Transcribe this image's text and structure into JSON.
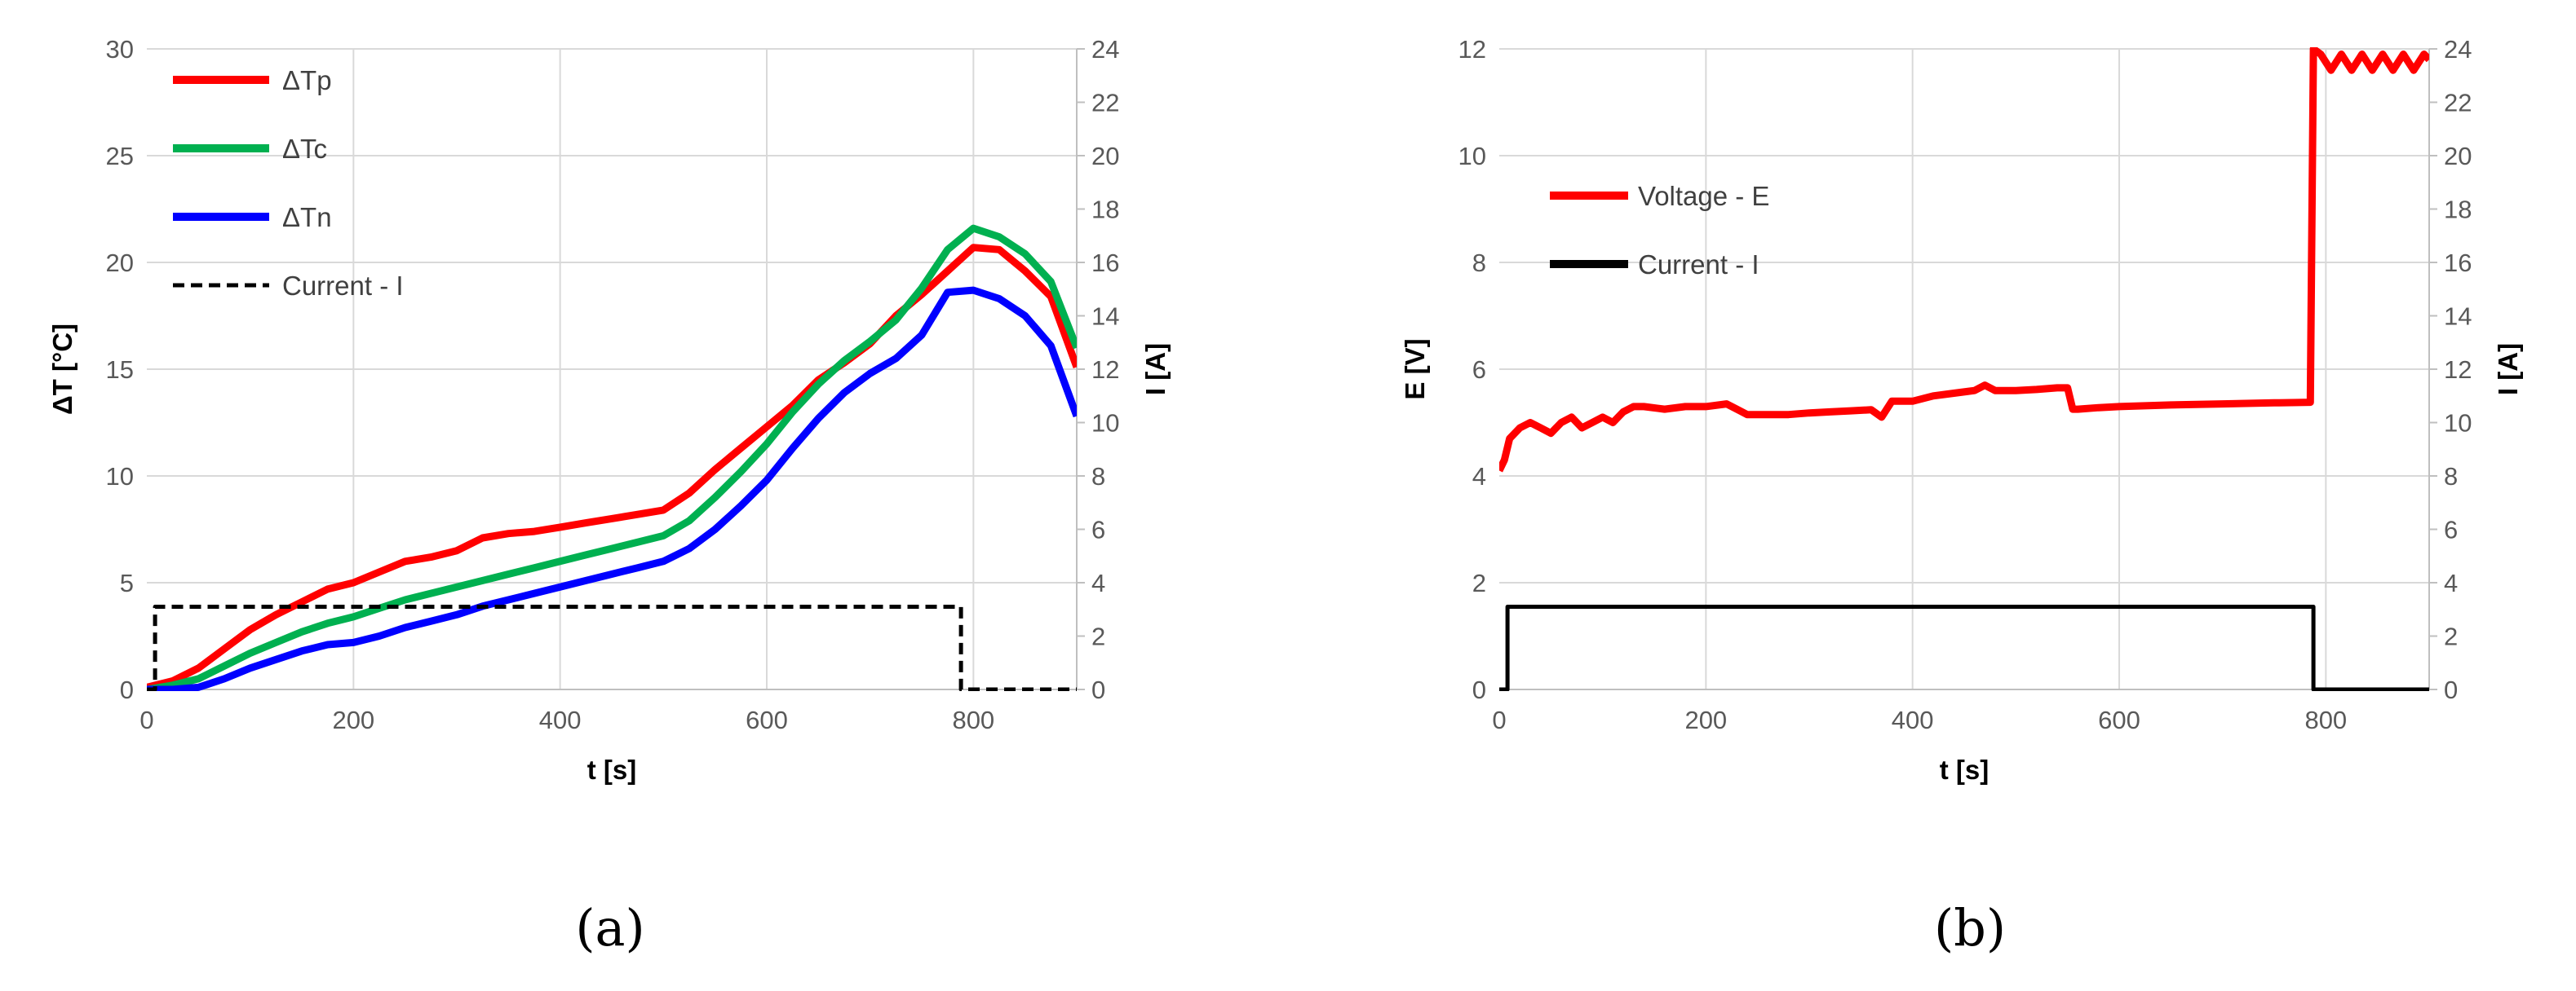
{
  "chart_data": [
    {
      "type": "line",
      "panel_label": "(a)",
      "xlabel": "t [s]",
      "ylabel": "ΔT [°C]",
      "y2label": "I [A]",
      "xlim": [
        0,
        900
      ],
      "ylim": [
        0,
        30
      ],
      "y2lim": [
        0,
        24
      ],
      "x_ticks": [
        0,
        200,
        400,
        600,
        800
      ],
      "y_ticks": [
        0,
        5,
        10,
        15,
        20,
        25,
        30
      ],
      "y2_ticks": [
        0,
        2,
        4,
        6,
        8,
        10,
        12,
        14,
        16,
        18,
        20,
        22,
        24
      ],
      "grid": true,
      "legend_position": "top-left",
      "series": [
        {
          "name": "ΔTp",
          "axis": "left",
          "color": "#ff0000",
          "style": "solid",
          "x": [
            0,
            25,
            50,
            75,
            100,
            125,
            150,
            175,
            200,
            225,
            250,
            275,
            300,
            325,
            350,
            375,
            400,
            425,
            450,
            475,
            500,
            525,
            550,
            575,
            600,
            625,
            650,
            675,
            700,
            725,
            750,
            775,
            800,
            825,
            850,
            875,
            900
          ],
          "y": [
            0.1,
            0.4,
            1.0,
            1.9,
            2.8,
            3.5,
            4.1,
            4.7,
            5.0,
            5.5,
            6.0,
            6.2,
            6.5,
            7.1,
            7.3,
            7.4,
            7.6,
            7.8,
            8.0,
            8.2,
            8.4,
            9.2,
            10.3,
            11.3,
            12.3,
            13.3,
            14.5,
            15.3,
            16.2,
            17.5,
            18.5,
            19.6,
            20.7,
            20.6,
            19.6,
            18.4,
            15.1
          ]
        },
        {
          "name": "ΔTc",
          "axis": "left",
          "color": "#00b050",
          "style": "solid",
          "x": [
            0,
            25,
            50,
            75,
            100,
            125,
            150,
            175,
            200,
            225,
            250,
            275,
            300,
            325,
            350,
            375,
            400,
            425,
            450,
            475,
            500,
            525,
            550,
            575,
            600,
            625,
            650,
            675,
            700,
            725,
            750,
            775,
            800,
            825,
            850,
            875,
            900
          ],
          "y": [
            0.0,
            0.2,
            0.5,
            1.1,
            1.7,
            2.2,
            2.7,
            3.1,
            3.4,
            3.8,
            4.2,
            4.5,
            4.8,
            5.1,
            5.4,
            5.7,
            6.0,
            6.3,
            6.6,
            6.9,
            7.2,
            7.9,
            9.0,
            10.2,
            11.5,
            13.0,
            14.3,
            15.4,
            16.3,
            17.3,
            18.8,
            20.6,
            21.6,
            21.2,
            20.4,
            19.1,
            16.0
          ]
        },
        {
          "name": "ΔTn",
          "axis": "left",
          "color": "#0000ff",
          "style": "solid",
          "x": [
            0,
            25,
            50,
            75,
            100,
            125,
            150,
            175,
            200,
            225,
            250,
            275,
            300,
            325,
            350,
            375,
            400,
            425,
            450,
            475,
            500,
            525,
            550,
            575,
            600,
            625,
            650,
            675,
            700,
            725,
            750,
            775,
            800,
            825,
            850,
            875,
            900
          ],
          "y": [
            0.0,
            0.0,
            0.1,
            0.5,
            1.0,
            1.4,
            1.8,
            2.1,
            2.2,
            2.5,
            2.9,
            3.2,
            3.5,
            3.9,
            4.2,
            4.5,
            4.8,
            5.1,
            5.4,
            5.7,
            6.0,
            6.6,
            7.5,
            8.6,
            9.8,
            11.3,
            12.7,
            13.9,
            14.8,
            15.5,
            16.6,
            18.6,
            18.7,
            18.3,
            17.5,
            16.1,
            12.8
          ]
        },
        {
          "name": "Current - I",
          "axis": "right",
          "color": "#000000",
          "style": "dashed",
          "x": [
            0,
            8,
            8,
            788,
            788,
            900
          ],
          "y": [
            0,
            0,
            3.1,
            3.1,
            0,
            0
          ]
        }
      ]
    },
    {
      "type": "line",
      "panel_label": "(b)",
      "xlabel": "t [s]",
      "ylabel": "E [V]",
      "y2label": "I [A]",
      "xlim": [
        0,
        900
      ],
      "ylim": [
        0,
        12
      ],
      "y2lim": [
        0,
        24
      ],
      "x_ticks": [
        0,
        200,
        400,
        600,
        800
      ],
      "y_ticks": [
        0,
        2,
        4,
        6,
        8,
        10,
        12
      ],
      "y2_ticks": [
        0,
        2,
        4,
        6,
        8,
        10,
        12,
        14,
        16,
        18,
        20,
        22,
        24
      ],
      "grid": true,
      "legend_position": "upper-left",
      "series": [
        {
          "name": "Voltage - E",
          "axis": "left",
          "color": "#ff0000",
          "style": "solid",
          "x": [
            0,
            5,
            10,
            20,
            30,
            40,
            50,
            60,
            70,
            80,
            90,
            100,
            110,
            120,
            130,
            140,
            160,
            180,
            200,
            220,
            230,
            240,
            260,
            280,
            300,
            320,
            340,
            360,
            370,
            380,
            400,
            420,
            440,
            460,
            470,
            480,
            500,
            520,
            540,
            550,
            555,
            560,
            580,
            600,
            650,
            700,
            750,
            785,
            788,
            795,
            805,
            815,
            825,
            835,
            845,
            855,
            865,
            875,
            885,
            895,
            900
          ],
          "y": [
            4.1,
            4.3,
            4.7,
            4.9,
            5.0,
            4.9,
            4.8,
            5.0,
            5.1,
            4.9,
            5.0,
            5.1,
            5.0,
            5.2,
            5.3,
            5.3,
            5.25,
            5.3,
            5.3,
            5.35,
            5.25,
            5.15,
            5.15,
            5.15,
            5.18,
            5.2,
            5.22,
            5.24,
            5.1,
            5.4,
            5.4,
            5.5,
            5.55,
            5.6,
            5.7,
            5.6,
            5.6,
            5.62,
            5.65,
            5.65,
            5.25,
            5.25,
            5.28,
            5.3,
            5.33,
            5.35,
            5.37,
            5.38,
            12.0,
            11.9,
            11.6,
            11.9,
            11.6,
            11.9,
            11.6,
            11.9,
            11.6,
            11.9,
            11.6,
            11.9,
            11.8
          ]
        },
        {
          "name": "Current - I",
          "axis": "right",
          "color": "#000000",
          "style": "solid",
          "x": [
            0,
            8,
            8,
            788,
            788,
            900
          ],
          "y": [
            0,
            0,
            3.1,
            3.1,
            0,
            0
          ]
        }
      ]
    }
  ]
}
